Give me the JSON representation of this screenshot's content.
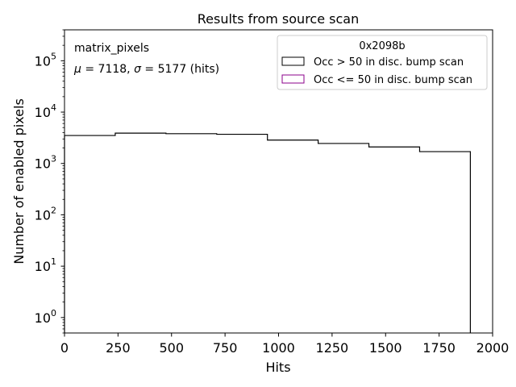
{
  "chart_data": {
    "type": "histogram",
    "title": "Results from source scan",
    "xlabel": "Hits",
    "ylabel": "Number of enabled pixels",
    "xlim": [
      0,
      2000
    ],
    "ylim": [
      0.5,
      400000
    ],
    "yscale": "log",
    "grid": false,
    "x_ticks": [
      0,
      250,
      500,
      750,
      1000,
      1250,
      1500,
      1750,
      2000
    ],
    "x_tick_labels": [
      "0",
      "250",
      "500",
      "750",
      "1000",
      "1250",
      "1500",
      "1750",
      "2000"
    ],
    "y_ticks": [
      1,
      10,
      100,
      1000,
      10000,
      100000
    ],
    "y_tick_bases": [
      "10",
      "10",
      "10",
      "10",
      "10",
      "10"
    ],
    "y_tick_exps": [
      "0",
      "1",
      "2",
      "3",
      "4",
      "5"
    ],
    "bin_edges": [
      0,
      237,
      474,
      711,
      948,
      1185,
      1422,
      1659,
      1896
    ],
    "series": [
      {
        "name": "Occ > 50 in disc. bump scan",
        "color": "#000000",
        "values": [
          3500,
          3900,
          3800,
          3700,
          2850,
          2450,
          2100,
          1700
        ]
      },
      {
        "name": "Occ <= 50 in disc. bump scan",
        "color": "#8b008b",
        "values": []
      }
    ],
    "legend": {
      "title": "0x2098b",
      "position": "top-right"
    },
    "annotations": {
      "label": "matrix_pixels",
      "mu_symbol": "μ",
      "mu_text": " = 7118, ",
      "sigma_symbol": "σ",
      "sigma_text": " = 5177 (hits)"
    }
  }
}
